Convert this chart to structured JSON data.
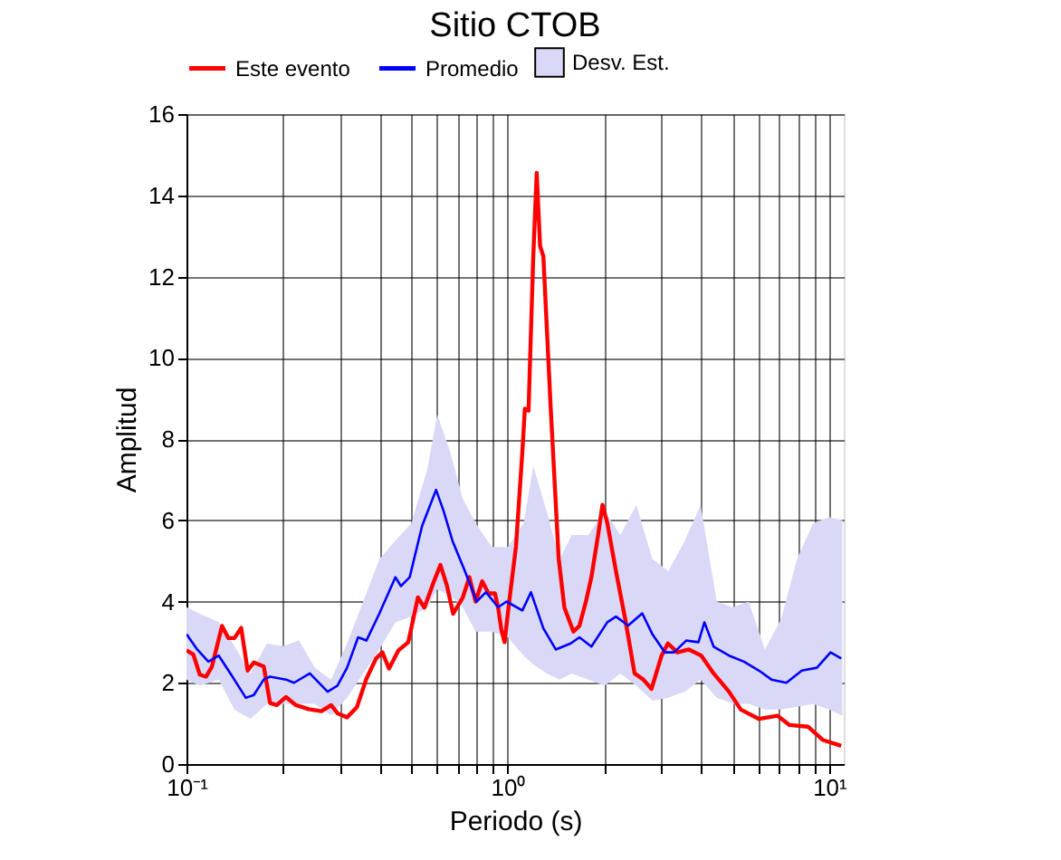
{
  "chart_data": {
    "type": "line",
    "title": "Sitio CTOB",
    "xlabel": "Periodo (s)",
    "ylabel": "Amplitud",
    "log": "x",
    "grid": true,
    "legend": "top",
    "xlim": [
      0.1,
      11.1
    ],
    "ylim": [
      0,
      16
    ],
    "xticks": [
      {
        "value": 0.1,
        "label": "10⁻¹"
      },
      {
        "value": 0.2,
        "label": null
      },
      {
        "value": 0.3,
        "label": null
      },
      {
        "value": 0.4,
        "label": null
      },
      {
        "value": 0.5,
        "label": null
      },
      {
        "value": 0.6,
        "label": null
      },
      {
        "value": 0.7,
        "label": null
      },
      {
        "value": 0.8,
        "label": null
      },
      {
        "value": 0.9,
        "label": null
      },
      {
        "value": 1,
        "label": "10⁰"
      },
      {
        "value": 2,
        "label": null
      },
      {
        "value": 3,
        "label": null
      },
      {
        "value": 4,
        "label": null
      },
      {
        "value": 5,
        "label": null
      },
      {
        "value": 6,
        "label": null
      },
      {
        "value": 7,
        "label": null
      },
      {
        "value": 8,
        "label": null
      },
      {
        "value": 9,
        "label": null
      },
      {
        "value": 10,
        "label": "10¹"
      }
    ],
    "yticks": [
      0,
      2,
      4,
      6,
      8,
      10,
      12,
      14,
      16
    ],
    "series": [
      {
        "name": "Desv. Est.",
        "type": "area",
        "color": "#d9d9f7",
        "values": [
          null,
          null,
          null,
          null,
          null,
          null,
          null,
          null,
          null,
          null,
          null,
          null,
          null,
          null,
          null,
          null,
          null,
          null,
          null,
          null,
          null,
          null,
          null,
          null,
          null,
          null,
          null,
          null,
          null,
          null,
          null,
          null,
          null,
          null,
          null,
          null,
          null,
          null,
          null,
          null,
          null,
          null,
          null,
          null
        ],
        "x": [
          0.1,
          0.11,
          0.126,
          0.141,
          0.158,
          0.178,
          0.2,
          0.224,
          0.251,
          0.282,
          0.316,
          0.355,
          0.398,
          0.447,
          0.501,
          0.562,
          0.603,
          0.661,
          0.724,
          0.794,
          0.891,
          1,
          1.12,
          1.2,
          1.32,
          1.45,
          1.58,
          1.78,
          2.0,
          2.24,
          2.51,
          2.82,
          3.16,
          3.55,
          3.98,
          4.47,
          5.01,
          5.62,
          6.31,
          7.08,
          7.94,
          8.91,
          10,
          11.0
        ],
        "upper": [
          3.86,
          3.7,
          3.5,
          2.9,
          2.23,
          2.97,
          2.9,
          3.04,
          2.37,
          2.08,
          2.97,
          4.0,
          5.04,
          5.5,
          5.93,
          7.27,
          8.6,
          7.7,
          6.53,
          5.93,
          5.34,
          5.34,
          5.93,
          7.34,
          6.23,
          5.04,
          5.64,
          5.64,
          6.23,
          5.64,
          6.38,
          5.04,
          4.75,
          5.49,
          6.38,
          4.0,
          3.86,
          4.0,
          2.82,
          3.56,
          5.04,
          5.93,
          6.08,
          6.0
        ],
        "lower": [
          2.08,
          1.93,
          2.08,
          1.34,
          1.11,
          1.48,
          1.48,
          1.48,
          1.48,
          1.19,
          1.63,
          2.23,
          2.82,
          3.49,
          3.63,
          3.86,
          4.3,
          4.15,
          3.86,
          3.26,
          3.26,
          3.12,
          2.67,
          2.45,
          2.23,
          2.08,
          2.23,
          2.08,
          1.93,
          2.23,
          1.93,
          1.56,
          1.63,
          1.78,
          2.08,
          1.63,
          1.48,
          1.48,
          1.34,
          1.34,
          1.41,
          1.48,
          1.34,
          1.19
        ]
      },
      {
        "name": "Este evento",
        "color": "#ff0000",
        "x": [
          0.1,
          0.105,
          0.11,
          0.115,
          0.12,
          0.129,
          0.135,
          0.141,
          0.148,
          0.155,
          0.162,
          0.174,
          0.182,
          0.191,
          0.204,
          0.219,
          0.24,
          0.263,
          0.282,
          0.295,
          0.316,
          0.339,
          0.363,
          0.389,
          0.407,
          0.427,
          0.457,
          0.49,
          0.525,
          0.55,
          0.589,
          0.617,
          0.646,
          0.676,
          0.724,
          0.759,
          0.794,
          0.832,
          0.871,
          0.912,
          0.933,
          0.955,
          0.977,
          1.01,
          1.06,
          1.11,
          1.13,
          1.16,
          1.2,
          1.23,
          1.26,
          1.29,
          1.36,
          1.44,
          1.5,
          1.6,
          1.67,
          1.75,
          1.82,
          1.91,
          1.97,
          2.04,
          2.17,
          2.32,
          2.48,
          2.64,
          2.8,
          3.01,
          3.15,
          3.37,
          3.66,
          4.0,
          4.37,
          4.88,
          5.31,
          6.05,
          6.9,
          7.53,
          8.59,
          9.57,
          10.9
        ],
        "values": [
          2.8,
          2.7,
          2.2,
          2.15,
          2.4,
          3.4,
          3.1,
          3.1,
          3.35,
          2.3,
          2.5,
          2.4,
          1.5,
          1.45,
          1.65,
          1.45,
          1.35,
          1.3,
          1.45,
          1.25,
          1.15,
          1.4,
          2.1,
          2.6,
          2.75,
          2.35,
          2.8,
          3.0,
          4.1,
          3.85,
          4.5,
          4.9,
          4.4,
          3.7,
          4.1,
          4.6,
          4.0,
          4.5,
          4.2,
          4.2,
          3.85,
          3.3,
          3.0,
          4.0,
          5.35,
          7.7,
          8.75,
          8.7,
          12.5,
          14.55,
          12.75,
          12.5,
          8.75,
          5.05,
          3.85,
          3.26,
          3.4,
          4.0,
          4.6,
          5.64,
          6.38,
          5.93,
          4.75,
          3.56,
          2.23,
          2.08,
          1.85,
          2.67,
          2.97,
          2.75,
          2.82,
          2.67,
          2.23,
          1.78,
          1.34,
          1.11,
          1.19,
          0.96,
          0.92,
          0.59,
          0.45
        ]
      },
      {
        "name": "Promedio",
        "color": "#0000ff",
        "x": [
          0.1,
          0.108,
          0.117,
          0.126,
          0.137,
          0.153,
          0.162,
          0.174,
          0.182,
          0.204,
          0.216,
          0.242,
          0.275,
          0.295,
          0.316,
          0.342,
          0.363,
          0.398,
          0.447,
          0.465,
          0.495,
          0.541,
          0.598,
          0.631,
          0.673,
          0.735,
          0.8,
          0.855,
          0.933,
          0.991,
          1.11,
          1.18,
          1.29,
          1.41,
          1.57,
          1.67,
          1.82,
          2.04,
          2.17,
          2.37,
          2.62,
          2.82,
          3.08,
          3.29,
          3.59,
          3.92,
          4.09,
          4.37,
          4.88,
          5.43,
          6.05,
          6.61,
          7.36,
          8.22,
          9.16,
          10.1,
          10.9
        ],
        "values": [
          3.2,
          2.82,
          2.52,
          2.67,
          2.23,
          1.63,
          1.7,
          2.08,
          2.15,
          2.08,
          2.0,
          2.23,
          1.78,
          1.93,
          2.37,
          3.12,
          3.04,
          3.7,
          4.6,
          4.38,
          4.6,
          5.86,
          6.75,
          6.23,
          5.49,
          4.75,
          4.0,
          4.23,
          3.86,
          4.0,
          3.78,
          4.23,
          3.34,
          2.82,
          2.97,
          3.12,
          2.89,
          3.49,
          3.63,
          3.41,
          3.71,
          3.19,
          2.75,
          2.75,
          3.04,
          3.0,
          3.49,
          2.89,
          2.67,
          2.52,
          2.3,
          2.08,
          2.0,
          2.3,
          2.37,
          2.75,
          2.6
        ]
      }
    ]
  }
}
